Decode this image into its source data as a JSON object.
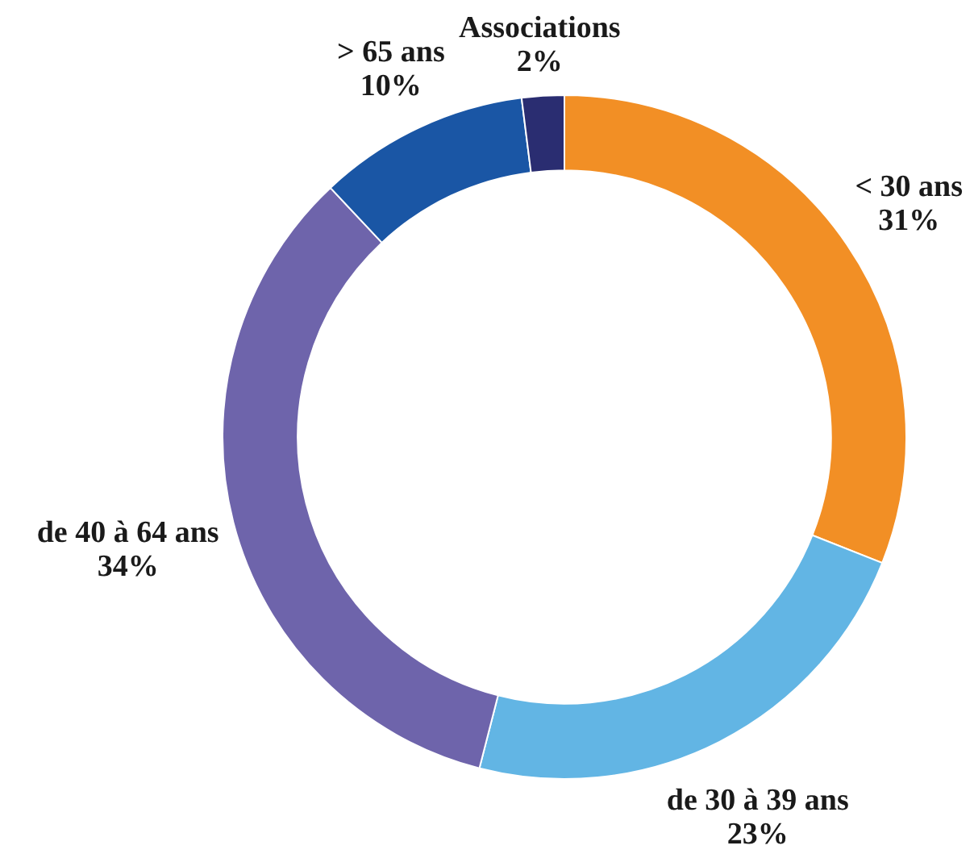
{
  "chart_data": {
    "type": "donut",
    "categories": [
      "< 30 ans",
      "de 30 à 39 ans",
      "de 40 à 64 ans",
      "> 65 ans",
      "Associations"
    ],
    "values": [
      31,
      23,
      34,
      10,
      2
    ],
    "colors": [
      "#f28f25",
      "#62b5e4",
      "#6e64ab",
      "#1a56a5",
      "#2a2d71"
    ],
    "value_labels": [
      "31%",
      "23%",
      "34%",
      "10%",
      "2%"
    ]
  }
}
